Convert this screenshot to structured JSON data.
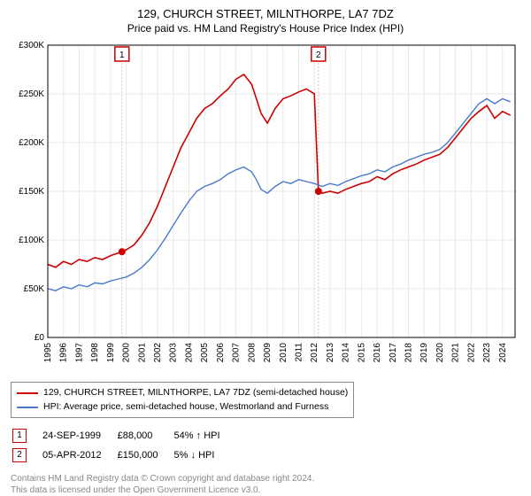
{
  "title": "129, CHURCH STREET, MILNTHORPE, LA7 7DZ",
  "subtitle": "Price paid vs. HM Land Registry's House Price Index (HPI)",
  "chart": {
    "type": "line",
    "background_color": "#ffffff",
    "plot_border_color": "#000000",
    "grid_color": "#e8e8e8",
    "xlim": [
      1995,
      2024.8
    ],
    "ylim": [
      0,
      300000
    ],
    "ytick_step": 50000,
    "yticks": [
      "£0",
      "£50K",
      "£100K",
      "£150K",
      "£200K",
      "£250K",
      "£300K"
    ],
    "xticks": [
      1995,
      1996,
      1997,
      1998,
      1999,
      2000,
      2001,
      2002,
      2003,
      2004,
      2005,
      2006,
      2007,
      2008,
      2009,
      2010,
      2011,
      2012,
      2013,
      2014,
      2015,
      2016,
      2017,
      2018,
      2019,
      2020,
      2021,
      2022,
      2023,
      2024
    ],
    "axis_fontsize": 10,
    "series": [
      {
        "name": "property",
        "label": "129, CHURCH STREET, MILNTHORPE, LA7 7DZ (semi-detached house)",
        "color": "#cc0000",
        "line_width": 1.6,
        "data": [
          [
            1995,
            75000
          ],
          [
            1995.5,
            72000
          ],
          [
            1996,
            78000
          ],
          [
            1996.5,
            75000
          ],
          [
            1997,
            80000
          ],
          [
            1997.5,
            78000
          ],
          [
            1998,
            82000
          ],
          [
            1998.5,
            80000
          ],
          [
            1999,
            84000
          ],
          [
            1999.73,
            88000
          ],
          [
            2000,
            90000
          ],
          [
            2000.5,
            95000
          ],
          [
            2001,
            105000
          ],
          [
            2001.5,
            118000
          ],
          [
            2002,
            135000
          ],
          [
            2002.5,
            155000
          ],
          [
            2003,
            175000
          ],
          [
            2003.5,
            195000
          ],
          [
            2004,
            210000
          ],
          [
            2004.5,
            225000
          ],
          [
            2005,
            235000
          ],
          [
            2005.5,
            240000
          ],
          [
            2006,
            248000
          ],
          [
            2006.5,
            255000
          ],
          [
            2007,
            265000
          ],
          [
            2007.5,
            270000
          ],
          [
            2008,
            260000
          ],
          [
            2008.3,
            245000
          ],
          [
            2008.6,
            230000
          ],
          [
            2009,
            220000
          ],
          [
            2009.5,
            235000
          ],
          [
            2010,
            245000
          ],
          [
            2010.5,
            248000
          ],
          [
            2011,
            252000
          ],
          [
            2011.5,
            255000
          ],
          [
            2012,
            250000
          ],
          [
            2012.26,
            150000
          ],
          [
            2012.5,
            148000
          ],
          [
            2013,
            150000
          ],
          [
            2013.5,
            148000
          ],
          [
            2014,
            152000
          ],
          [
            2014.5,
            155000
          ],
          [
            2015,
            158000
          ],
          [
            2015.5,
            160000
          ],
          [
            2016,
            165000
          ],
          [
            2016.5,
            162000
          ],
          [
            2017,
            168000
          ],
          [
            2017.5,
            172000
          ],
          [
            2018,
            175000
          ],
          [
            2018.5,
            178000
          ],
          [
            2019,
            182000
          ],
          [
            2019.5,
            185000
          ],
          [
            2020,
            188000
          ],
          [
            2020.5,
            195000
          ],
          [
            2021,
            205000
          ],
          [
            2021.5,
            215000
          ],
          [
            2022,
            225000
          ],
          [
            2022.5,
            232000
          ],
          [
            2023,
            238000
          ],
          [
            2023.5,
            225000
          ],
          [
            2024,
            232000
          ],
          [
            2024.5,
            228000
          ]
        ]
      },
      {
        "name": "hpi",
        "label": "HPI: Average price, semi-detached house, Westmorland and Furness",
        "color": "#4a7ac7",
        "line_width": 1.4,
        "data": [
          [
            1995,
            50000
          ],
          [
            1995.5,
            48000
          ],
          [
            1996,
            52000
          ],
          [
            1996.5,
            50000
          ],
          [
            1997,
            54000
          ],
          [
            1997.5,
            52000
          ],
          [
            1998,
            56000
          ],
          [
            1998.5,
            55000
          ],
          [
            1999,
            58000
          ],
          [
            1999.5,
            60000
          ],
          [
            2000,
            62000
          ],
          [
            2000.5,
            66000
          ],
          [
            2001,
            72000
          ],
          [
            2001.5,
            80000
          ],
          [
            2002,
            90000
          ],
          [
            2002.5,
            102000
          ],
          [
            2003,
            115000
          ],
          [
            2003.5,
            128000
          ],
          [
            2004,
            140000
          ],
          [
            2004.5,
            150000
          ],
          [
            2005,
            155000
          ],
          [
            2005.5,
            158000
          ],
          [
            2006,
            162000
          ],
          [
            2006.5,
            168000
          ],
          [
            2007,
            172000
          ],
          [
            2007.5,
            175000
          ],
          [
            2008,
            170000
          ],
          [
            2008.3,
            162000
          ],
          [
            2008.6,
            152000
          ],
          [
            2009,
            148000
          ],
          [
            2009.5,
            155000
          ],
          [
            2010,
            160000
          ],
          [
            2010.5,
            158000
          ],
          [
            2011,
            162000
          ],
          [
            2011.5,
            160000
          ],
          [
            2012,
            158000
          ],
          [
            2012.5,
            155000
          ],
          [
            2013,
            158000
          ],
          [
            2013.5,
            156000
          ],
          [
            2014,
            160000
          ],
          [
            2014.5,
            163000
          ],
          [
            2015,
            166000
          ],
          [
            2015.5,
            168000
          ],
          [
            2016,
            172000
          ],
          [
            2016.5,
            170000
          ],
          [
            2017,
            175000
          ],
          [
            2017.5,
            178000
          ],
          [
            2018,
            182000
          ],
          [
            2018.5,
            185000
          ],
          [
            2019,
            188000
          ],
          [
            2019.5,
            190000
          ],
          [
            2020,
            193000
          ],
          [
            2020.5,
            200000
          ],
          [
            2021,
            210000
          ],
          [
            2021.5,
            220000
          ],
          [
            2022,
            230000
          ],
          [
            2022.5,
            240000
          ],
          [
            2023,
            245000
          ],
          [
            2023.5,
            240000
          ],
          [
            2024,
            245000
          ],
          [
            2024.5,
            242000
          ]
        ]
      }
    ],
    "sale_markers": [
      {
        "num": "1",
        "x": 1999.73,
        "y": 88000,
        "date": "24-SEP-1999",
        "price": "£88,000",
        "pct": "54%",
        "dir": "↑",
        "dir_label": "HPI",
        "color": "#cc0000",
        "vline_color": "#f5b5b5"
      },
      {
        "num": "2",
        "x": 2012.26,
        "y": 150000,
        "date": "05-APR-2012",
        "price": "£150,000",
        "pct": "5%",
        "dir": "↓",
        "dir_label": "HPI",
        "color": "#cc0000",
        "vline_color": "#f5b5b5"
      }
    ]
  },
  "footer_line1": "Contains HM Land Registry data © Crown copyright and database right 2024.",
  "footer_line2": "This data is licensed under the Open Government Licence v3.0."
}
